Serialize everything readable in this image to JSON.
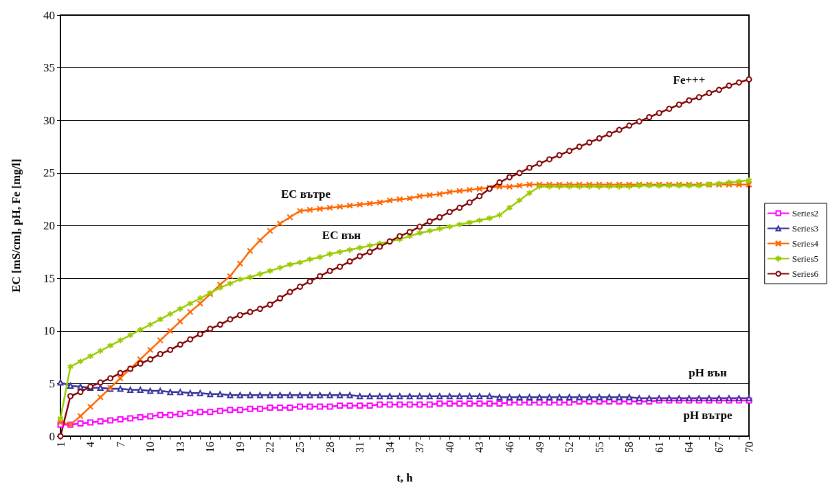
{
  "chart_data": {
    "type": "line",
    "xlabel": "t, h",
    "ylabel": "EC [mS/cm], pH, Fe [mg/l]",
    "categories": [
      "1",
      null,
      null,
      "4",
      null,
      null,
      "7",
      null,
      null,
      "10",
      null,
      null,
      "13",
      null,
      null,
      "16",
      null,
      null,
      "19",
      null,
      null,
      "22",
      null,
      null,
      "25",
      null,
      null,
      "28",
      null,
      null,
      "31",
      null,
      null,
      "34",
      null,
      null,
      "37",
      null,
      null,
      "40",
      null,
      null,
      "43",
      null,
      null,
      "46",
      null,
      null,
      "49",
      null,
      null,
      "52",
      null,
      null,
      "55",
      null,
      null,
      "58",
      null,
      null,
      "61",
      null,
      null,
      "64",
      null,
      null,
      "67",
      null,
      null,
      "70"
    ],
    "ylim": [
      0,
      40
    ],
    "yticks": [
      0,
      5,
      10,
      15,
      20,
      25,
      30,
      35,
      40
    ],
    "grid": "y",
    "legend": "right",
    "line_style": "solid",
    "series": [
      {
        "name": "Series2",
        "color": "#ff00ff",
        "marker": "square",
        "values": [
          1.1,
          1.1,
          1.2,
          1.3,
          1.4,
          1.5,
          1.6,
          1.7,
          1.8,
          1.9,
          2.0,
          2.0,
          2.1,
          2.2,
          2.3,
          2.3,
          2.4,
          2.5,
          2.5,
          2.6,
          2.6,
          2.7,
          2.7,
          2.7,
          2.8,
          2.8,
          2.8,
          2.8,
          2.9,
          2.9,
          2.9,
          2.9,
          3.0,
          3.0,
          3.0,
          3.0,
          3.0,
          3.0,
          3.1,
          3.1,
          3.1,
          3.1,
          3.1,
          3.1,
          3.1,
          3.2,
          3.2,
          3.2,
          3.2,
          3.2,
          3.2,
          3.2,
          3.3,
          3.3,
          3.3,
          3.3,
          3.3,
          3.3,
          3.3,
          3.3,
          3.4,
          3.4,
          3.4,
          3.4,
          3.4,
          3.4,
          3.4,
          3.4,
          3.4,
          3.4
        ]
      },
      {
        "name": "Series3",
        "color": "#333399",
        "marker": "triangle",
        "values": [
          5.1,
          4.8,
          4.7,
          4.6,
          4.6,
          4.5,
          4.5,
          4.4,
          4.4,
          4.3,
          4.3,
          4.2,
          4.2,
          4.1,
          4.1,
          4.0,
          4.0,
          3.9,
          3.9,
          3.9,
          3.9,
          3.9,
          3.9,
          3.9,
          3.9,
          3.9,
          3.9,
          3.9,
          3.9,
          3.9,
          3.8,
          3.8,
          3.8,
          3.8,
          3.8,
          3.8,
          3.8,
          3.8,
          3.8,
          3.8,
          3.8,
          3.8,
          3.8,
          3.8,
          3.7,
          3.7,
          3.7,
          3.7,
          3.7,
          3.7,
          3.7,
          3.7,
          3.7,
          3.7,
          3.7,
          3.7,
          3.7,
          3.7,
          3.6,
          3.6,
          3.6,
          3.6,
          3.6,
          3.6,
          3.6,
          3.6,
          3.6,
          3.6,
          3.6,
          3.6
        ]
      },
      {
        "name": "Series4",
        "color": "#ff6600",
        "marker": "cross",
        "values": [
          1.3,
          1.1,
          1.9,
          2.8,
          3.7,
          4.6,
          5.5,
          6.4,
          7.3,
          8.2,
          9.1,
          10.0,
          10.9,
          11.8,
          12.6,
          13.5,
          14.4,
          15.2,
          16.4,
          17.6,
          18.6,
          19.5,
          20.2,
          20.8,
          21.4,
          21.5,
          21.6,
          21.7,
          21.8,
          21.9,
          22.0,
          22.1,
          22.2,
          22.4,
          22.5,
          22.6,
          22.8,
          22.9,
          23.0,
          23.2,
          23.3,
          23.4,
          23.5,
          23.6,
          23.7,
          23.7,
          23.8,
          23.9,
          23.9,
          23.9,
          23.9,
          23.9,
          23.9,
          23.9,
          23.9,
          23.9,
          23.9,
          23.9,
          23.9,
          23.9,
          23.9,
          23.9,
          23.9,
          23.9,
          23.9,
          23.9,
          23.9,
          23.9,
          23.9,
          23.9
        ]
      },
      {
        "name": "Series5",
        "color": "#99cc00",
        "marker": "star",
        "values": [
          1.7,
          6.6,
          7.1,
          7.6,
          8.1,
          8.6,
          9.1,
          9.6,
          10.1,
          10.6,
          11.1,
          11.6,
          12.1,
          12.6,
          13.1,
          13.6,
          14.1,
          14.5,
          14.9,
          15.1,
          15.4,
          15.7,
          16.0,
          16.3,
          16.5,
          16.8,
          17.0,
          17.3,
          17.5,
          17.7,
          17.9,
          18.1,
          18.3,
          18.5,
          18.7,
          19.0,
          19.3,
          19.5,
          19.7,
          19.9,
          20.1,
          20.3,
          20.5,
          20.7,
          21.0,
          21.7,
          22.4,
          23.1,
          23.7,
          23.7,
          23.7,
          23.7,
          23.7,
          23.7,
          23.7,
          23.7,
          23.7,
          23.7,
          23.8,
          23.8,
          23.8,
          23.8,
          23.8,
          23.8,
          23.8,
          23.9,
          24.0,
          24.1,
          24.2,
          24.3
        ]
      },
      {
        "name": "Series6",
        "color": "#800000",
        "marker": "circle",
        "values": [
          0,
          3.8,
          4.2,
          4.7,
          5.1,
          5.5,
          6.0,
          6.4,
          6.9,
          7.3,
          7.8,
          8.2,
          8.7,
          9.2,
          9.7,
          10.2,
          10.6,
          11.1,
          11.5,
          11.8,
          12.1,
          12.5,
          13.1,
          13.7,
          14.2,
          14.7,
          15.2,
          15.7,
          16.1,
          16.6,
          17.1,
          17.5,
          18.0,
          18.5,
          19.0,
          19.4,
          19.9,
          20.4,
          20.8,
          21.3,
          21.7,
          22.2,
          22.8,
          23.5,
          24.1,
          24.6,
          25.0,
          25.5,
          25.9,
          26.3,
          26.7,
          27.1,
          27.5,
          27.9,
          28.3,
          28.7,
          29.1,
          29.5,
          29.9,
          30.3,
          30.7,
          31.1,
          31.5,
          31.9,
          32.2,
          32.6,
          32.9,
          33.3,
          33.6,
          33.9
        ]
      }
    ],
    "annotations": [
      "EC вътре",
      "EC вън",
      "Fe+++",
      "pH вън",
      "pH вътре"
    ]
  }
}
